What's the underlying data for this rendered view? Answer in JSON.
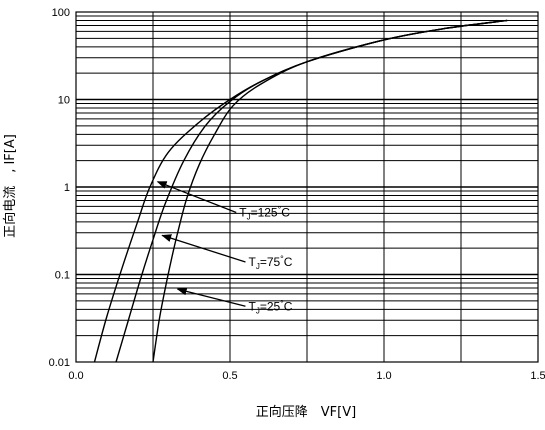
{
  "chart_data": {
    "type": "line",
    "title": "",
    "xlabel": "正向压降　VF[V]",
    "ylabel": "正向电流　, IF[A]",
    "x_scale": "linear",
    "y_scale": "log",
    "xlim": [
      0.0,
      1.5
    ],
    "ylim": [
      0.01,
      100
    ],
    "grid": true,
    "legend": "none",
    "x_ticks": [
      {
        "value": 0.0,
        "label": "0.0"
      },
      {
        "value": 0.5,
        "label": "0.5"
      },
      {
        "value": 1.0,
        "label": "1.0"
      },
      {
        "value": 1.5,
        "label": "1.5"
      }
    ],
    "y_ticks": [
      {
        "value": 0.01,
        "label": "0.01"
      },
      {
        "value": 0.1,
        "label": "0.1"
      },
      {
        "value": 1,
        "label": "1"
      },
      {
        "value": 10,
        "label": "10"
      },
      {
        "value": 100,
        "label": "100"
      }
    ],
    "series": [
      {
        "x": [
          0.06,
          0.1,
          0.15,
          0.2,
          0.24,
          0.3,
          0.4,
          0.5,
          0.6,
          0.75,
          1.0,
          1.2,
          1.4
        ],
        "y": [
          0.01,
          0.033,
          0.12,
          0.4,
          1.0,
          2.5,
          5.5,
          10,
          16,
          27,
          48,
          65,
          80
        ]
      },
      {
        "x": [
          0.13,
          0.17,
          0.21,
          0.25,
          0.29,
          0.35,
          0.42,
          0.5,
          0.6,
          0.75,
          1.0,
          1.2,
          1.4
        ],
        "y": [
          0.01,
          0.03,
          0.09,
          0.25,
          0.65,
          2.0,
          5.0,
          9.5,
          16,
          27,
          48,
          65,
          80
        ]
      },
      {
        "x": [
          0.25,
          0.27,
          0.29,
          0.31,
          0.33,
          0.36,
          0.4,
          0.45,
          0.51,
          0.6,
          0.75,
          1.0,
          1.2,
          1.4
        ],
        "y": [
          0.01,
          0.03,
          0.07,
          0.15,
          0.3,
          0.75,
          1.8,
          4.0,
          8.5,
          15,
          27,
          48,
          65,
          80
        ]
      }
    ],
    "annotations": [
      {
        "label": "TJ=125℃",
        "main": "T",
        "sub": "J",
        "rest": "=125",
        "deg": "°",
        "unit": "C",
        "tail_x": 0.265,
        "tail_y": 1.15,
        "text_x": 0.53,
        "text_y": 0.46
      },
      {
        "label": "TJ=75℃",
        "main": "T",
        "sub": "J",
        "rest": "=75",
        "deg": "°",
        "unit": "C",
        "tail_x": 0.28,
        "tail_y": 0.28,
        "text_x": 0.56,
        "text_y": 0.125
      },
      {
        "label": "TJ=25℃",
        "main": "T",
        "sub": "J",
        "rest": "=25",
        "deg": "°",
        "unit": "C",
        "tail_x": 0.33,
        "tail_y": 0.068,
        "text_x": 0.56,
        "text_y": 0.039
      }
    ]
  }
}
